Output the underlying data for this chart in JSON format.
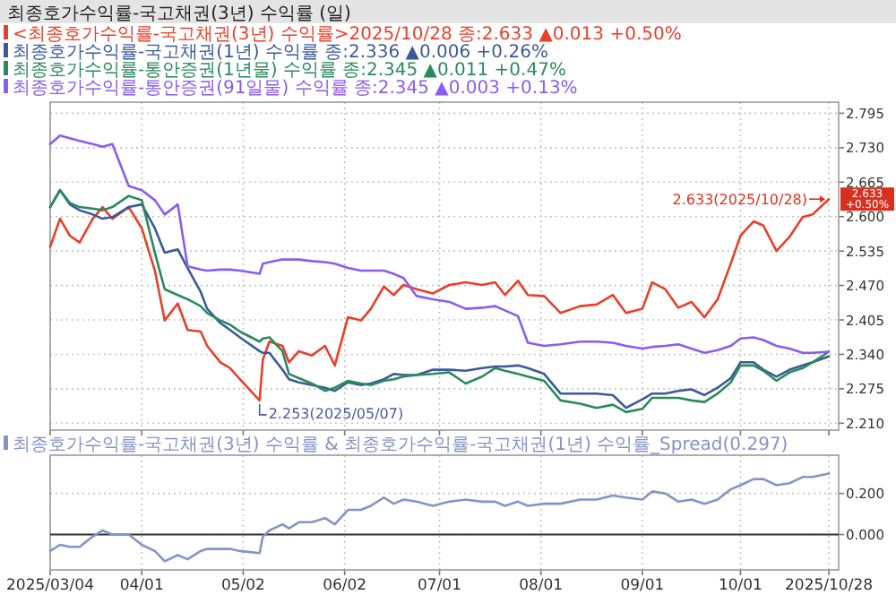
{
  "chart_data": [
    {
      "type": "line",
      "title": "최종호가수익률-국고채권(3년) 수익률 (일)",
      "legend": "top left",
      "grid": true,
      "tick_labels": "y",
      "x": [
        "2025-03-04",
        "2025-03-07",
        "2025-03-10",
        "2025-03-13",
        "2025-03-17",
        "2025-03-20",
        "2025-03-23",
        "2025-03-28",
        "2025-04-01",
        "2025-04-05",
        "2025-04-08",
        "2025-04-12",
        "2025-04-15",
        "2025-04-19",
        "2025-04-21",
        "2025-04-25",
        "2025-04-28",
        "2025-05-01",
        "2025-05-07",
        "2025-05-08",
        "2025-05-10",
        "2025-05-14",
        "2025-05-16",
        "2025-05-19",
        "2025-05-23",
        "2025-05-27",
        "2025-05-30",
        "2025-06-03",
        "2025-06-07",
        "2025-06-10",
        "2025-06-14",
        "2025-06-17",
        "2025-06-20",
        "2025-06-24",
        "2025-06-29",
        "2025-07-04",
        "2025-07-09",
        "2025-07-14",
        "2025-07-18",
        "2025-07-21",
        "2025-07-25",
        "2025-07-28",
        "2025-08-02",
        "2025-08-07",
        "2025-08-13",
        "2025-08-18",
        "2025-08-23",
        "2025-08-27",
        "2025-09-01",
        "2025-09-04",
        "2025-09-08",
        "2025-09-12",
        "2025-09-16",
        "2025-09-20",
        "2025-09-24",
        "2025-09-28",
        "2025-10-01",
        "2025-10-05",
        "2025-10-08",
        "2025-10-12",
        "2025-10-16",
        "2025-10-20",
        "2025-10-23",
        "2025-10-28"
      ],
      "xlim": [
        "2025-03-04",
        "2025-10-31"
      ],
      "xticks": [
        {
          "value": "2025-03-04",
          "label": null
        },
        {
          "value": "2025-04-01",
          "label": null
        },
        {
          "value": "2025-05-02",
          "label": null
        },
        {
          "value": "2025-06-02",
          "label": null
        },
        {
          "value": "2025-07-01",
          "label": null
        },
        {
          "value": "2025-08-01",
          "label": null
        },
        {
          "value": "2025-09-01",
          "label": null
        },
        {
          "value": "2025-10-01",
          "label": null
        },
        {
          "value": "2025-10-28",
          "label": null
        }
      ],
      "ylim": [
        2.197,
        2.816
      ],
      "yticks": [
        {
          "value": 2.21,
          "label": "2.210"
        },
        {
          "value": 2.275,
          "label": "2.275"
        },
        {
          "value": 2.34,
          "label": "2.340"
        },
        {
          "value": 2.405,
          "label": "2.405"
        },
        {
          "value": 2.47,
          "label": "2.470"
        },
        {
          "value": 2.535,
          "label": "2.535"
        },
        {
          "value": 2.6,
          "label": "2.600"
        },
        {
          "value": 2.665,
          "label": "2.665"
        },
        {
          "value": 2.73,
          "label": "2.730"
        },
        {
          "value": 2.795,
          "label": "2.795"
        }
      ],
      "series": [
        {
          "name": "<최종호가수익률-국고채권(3년) 수익률>2025/10/28 종:2.633 ▲0.013 +0.50%",
          "color": "#e8402a",
          "values": [
            2.543,
            2.596,
            2.564,
            2.551,
            2.596,
            2.618,
            2.596,
            2.618,
            2.578,
            2.498,
            2.404,
            2.436,
            2.386,
            2.383,
            2.356,
            2.325,
            2.314,
            2.293,
            2.253,
            2.33,
            2.364,
            2.356,
            2.325,
            2.346,
            2.338,
            2.356,
            2.319,
            2.41,
            2.404,
            2.426,
            2.468,
            2.452,
            2.471,
            2.463,
            2.455,
            2.471,
            2.476,
            2.471,
            2.476,
            2.452,
            2.479,
            2.452,
            2.45,
            2.418,
            2.431,
            2.434,
            2.452,
            2.418,
            2.426,
            2.476,
            2.463,
            2.428,
            2.439,
            2.41,
            2.444,
            2.511,
            2.564,
            2.591,
            2.583,
            2.535,
            2.562,
            2.599,
            2.604,
            2.633
          ]
        },
        {
          "name": "최종호가수익률-국고채권(1년) 수익률 종:2.336 ▲0.006 +0.26%",
          "color": "#3c5a9a",
          "values": [
            2.618,
            2.65,
            2.623,
            2.612,
            2.604,
            2.596,
            2.599,
            2.618,
            2.623,
            2.578,
            2.532,
            2.538,
            2.503,
            2.458,
            2.426,
            2.399,
            2.386,
            2.372,
            2.346,
            2.343,
            2.343,
            2.311,
            2.293,
            2.287,
            2.282,
            2.277,
            2.271,
            2.287,
            2.282,
            2.285,
            2.293,
            2.303,
            2.301,
            2.301,
            2.311,
            2.311,
            2.309,
            2.314,
            2.317,
            2.317,
            2.319,
            2.314,
            2.303,
            2.266,
            2.266,
            2.266,
            2.263,
            2.239,
            2.255,
            2.266,
            2.266,
            2.271,
            2.274,
            2.263,
            2.277,
            2.295,
            2.325,
            2.325,
            2.311,
            2.298,
            2.311,
            2.319,
            2.325,
            2.336
          ]
        },
        {
          "name": "최종호가수익률-통안증권(1년물) 수익률 종:2.345 ▲0.011 +0.47%",
          "color": "#2a8a5e",
          "values": [
            2.618,
            2.65,
            2.626,
            2.618,
            2.615,
            2.612,
            2.618,
            2.639,
            2.631,
            2.532,
            2.463,
            2.452,
            2.444,
            2.431,
            2.418,
            2.404,
            2.396,
            2.383,
            2.364,
            2.37,
            2.372,
            2.346,
            2.303,
            2.295,
            2.285,
            2.271,
            2.277,
            2.29,
            2.285,
            2.282,
            2.29,
            2.293,
            2.298,
            2.301,
            2.303,
            2.306,
            2.285,
            2.298,
            2.314,
            2.309,
            2.303,
            2.298,
            2.29,
            2.253,
            2.247,
            2.239,
            2.245,
            2.231,
            2.237,
            2.258,
            2.258,
            2.258,
            2.253,
            2.25,
            2.266,
            2.287,
            2.319,
            2.319,
            2.309,
            2.29,
            2.306,
            2.314,
            2.325,
            2.345
          ]
        },
        {
          "name": "최종호가수익률-통안증권(91일물) 수익률 종:2.345 ▲0.003 +0.13%",
          "color": "#8a5cf0",
          "values": [
            2.737,
            2.753,
            2.748,
            2.743,
            2.737,
            2.732,
            2.737,
            2.658,
            2.65,
            2.631,
            2.604,
            2.623,
            2.506,
            2.5,
            2.498,
            2.5,
            2.5,
            2.498,
            2.492,
            2.511,
            2.514,
            2.519,
            2.519,
            2.519,
            2.516,
            2.514,
            2.511,
            2.503,
            2.498,
            2.498,
            2.498,
            2.492,
            2.484,
            2.45,
            2.444,
            2.439,
            2.426,
            2.428,
            2.431,
            2.423,
            2.412,
            2.362,
            2.356,
            2.359,
            2.364,
            2.364,
            2.362,
            2.356,
            2.351,
            2.354,
            2.356,
            2.359,
            2.351,
            2.343,
            2.348,
            2.356,
            2.37,
            2.372,
            2.367,
            2.356,
            2.351,
            2.343,
            2.343,
            2.345
          ]
        }
      ],
      "annotations": [
        {
          "text": "2.253(2025/05/07)",
          "x": "2025-05-07",
          "y": 2.253
        },
        {
          "text": "2.633(2025/10/28)",
          "x": "2025-10-28",
          "y": 2.633
        },
        {
          "text": "2.633\n+0.50%",
          "x": "2025-10-28",
          "y": 2.633
        }
      ]
    },
    {
      "type": "line",
      "legend": "top left",
      "grid": true,
      "x": [
        "2025-03-04",
        "2025-03-07",
        "2025-03-10",
        "2025-03-13",
        "2025-03-17",
        "2025-03-20",
        "2025-03-23",
        "2025-03-28",
        "2025-04-01",
        "2025-04-05",
        "2025-04-08",
        "2025-04-12",
        "2025-04-15",
        "2025-04-19",
        "2025-04-21",
        "2025-04-25",
        "2025-04-28",
        "2025-05-01",
        "2025-05-07",
        "2025-05-08",
        "2025-05-10",
        "2025-05-14",
        "2025-05-16",
        "2025-05-19",
        "2025-05-23",
        "2025-05-27",
        "2025-05-30",
        "2025-06-03",
        "2025-06-07",
        "2025-06-10",
        "2025-06-14",
        "2025-06-17",
        "2025-06-20",
        "2025-06-24",
        "2025-06-29",
        "2025-07-04",
        "2025-07-09",
        "2025-07-14",
        "2025-07-18",
        "2025-07-21",
        "2025-07-25",
        "2025-07-28",
        "2025-08-02",
        "2025-08-07",
        "2025-08-13",
        "2025-08-18",
        "2025-08-23",
        "2025-08-27",
        "2025-09-01",
        "2025-09-04",
        "2025-09-08",
        "2025-09-12",
        "2025-09-16",
        "2025-09-20",
        "2025-09-24",
        "2025-09-28",
        "2025-10-01",
        "2025-10-05",
        "2025-10-08",
        "2025-10-12",
        "2025-10-16",
        "2025-10-20",
        "2025-10-23",
        "2025-10-28"
      ],
      "xlim": [
        "2025-03-04",
        "2025-10-31"
      ],
      "xticks": [
        {
          "value": "2025-03-04",
          "label": "2025/03/04"
        },
        {
          "value": "2025-04-01",
          "label": "04/01"
        },
        {
          "value": "2025-05-02",
          "label": "05/02"
        },
        {
          "value": "2025-06-02",
          "label": "06/02"
        },
        {
          "value": "2025-07-01",
          "label": "07/01"
        },
        {
          "value": "2025-08-01",
          "label": "08/01"
        },
        {
          "value": "2025-09-01",
          "label": "09/01"
        },
        {
          "value": "2025-10-01",
          "label": "10/01"
        },
        {
          "value": "2025-10-28",
          "label": "2025/10/28"
        }
      ],
      "ylim": [
        -0.172,
        0.386
      ],
      "yticks": [
        {
          "value": 0,
          "label": "0.000"
        },
        {
          "value": 0.2,
          "label": "0.200"
        }
      ],
      "ref_lines": [
        {
          "axis": "y",
          "value": 0,
          "color": "#333333"
        }
      ],
      "series": [
        {
          "name": "최종호가수익률-국고채권(3년) 수익률 & 최종호가수익률-국고채권(1년) 수익률_Spread(0.297)",
          "color": "#8494c4",
          "values": [
            -0.08,
            -0.05,
            -0.06,
            -0.06,
            -0.01,
            0.02,
            0.0,
            0.0,
            -0.05,
            -0.08,
            -0.13,
            -0.1,
            -0.12,
            -0.08,
            -0.07,
            -0.07,
            -0.07,
            -0.08,
            -0.09,
            -0.01,
            0.02,
            0.05,
            0.03,
            0.06,
            0.06,
            0.08,
            0.05,
            0.12,
            0.12,
            0.14,
            0.18,
            0.15,
            0.17,
            0.16,
            0.14,
            0.16,
            0.17,
            0.16,
            0.16,
            0.14,
            0.16,
            0.14,
            0.15,
            0.15,
            0.17,
            0.17,
            0.19,
            0.18,
            0.17,
            0.21,
            0.2,
            0.16,
            0.17,
            0.15,
            0.17,
            0.22,
            0.24,
            0.27,
            0.27,
            0.24,
            0.25,
            0.28,
            0.28,
            0.297
          ]
        }
      ]
    }
  ]
}
